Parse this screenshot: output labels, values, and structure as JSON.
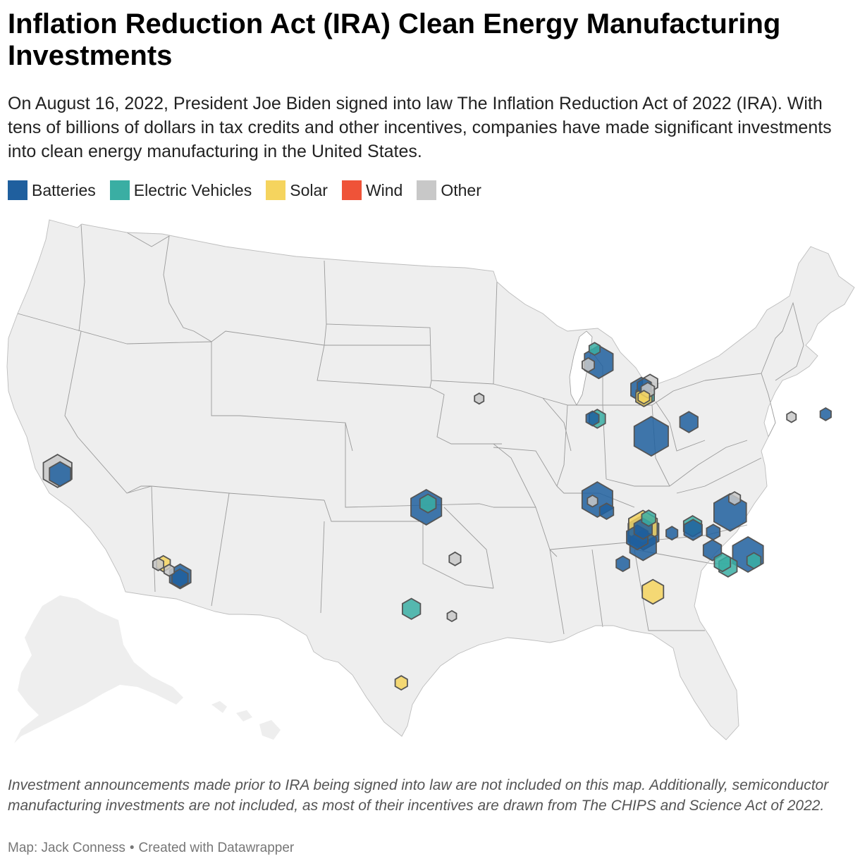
{
  "title": "Inflation Reduction Act (IRA) Clean Energy Manufacturing Investments",
  "subtitle": "On August 16, 2022, President Joe Biden signed into law The Inflation Reduction Act of 2022 (IRA). With tens of billions of dollars in tax credits and other incentives, companies have made significant investments into clean energy manufacturing in the United States.",
  "legend": [
    {
      "label": "Batteries",
      "color": "#1f5f9e"
    },
    {
      "label": "Electric Vehicles",
      "color": "#3aaea3"
    },
    {
      "label": "Solar",
      "color": "#f5d45e"
    },
    {
      "label": "Wind",
      "color": "#ef5338"
    },
    {
      "label": "Other",
      "color": "#c8c8c8"
    }
  ],
  "colors": {
    "land": "#eeeeee",
    "border": "#9a9a9a",
    "hex_stroke": "#555555",
    "water": "#ffffff"
  },
  "footer": {
    "note": "Investment announcements made prior to IRA being signed into law are not included on this map. Additionally, semiconductor manufacturing investments are not included, as most of their incentives are drawn from The CHIPS and Science Act of 2022.",
    "credit_map": "Map: Jack Conness",
    "credit_tool": "Created with Datawrapper"
  },
  "map_data": {
    "type": "hexbin-symbol-map",
    "region": "United States",
    "points": [
      {
        "lon": -119.8,
        "lat": 39.5,
        "category": "Other",
        "size": 6
      },
      {
        "lon": -119.6,
        "lat": 39.3,
        "category": "Batteries",
        "size": 3
      },
      {
        "lon": -112.3,
        "lat": 33.5,
        "category": "Solar",
        "size": 1
      },
      {
        "lon": -112.6,
        "lat": 33.5,
        "category": "Other",
        "size": 0.5
      },
      {
        "lon": -111.9,
        "lat": 33.1,
        "category": "Other",
        "size": 0.4
      },
      {
        "lon": -111.2,
        "lat": 32.7,
        "category": "Batteries",
        "size": 3
      },
      {
        "lon": -111.2,
        "lat": 32.6,
        "category": "Batteries",
        "size": 1.5
      },
      {
        "lon": -96.9,
        "lat": 35.7,
        "category": "Batteries",
        "size": 7
      },
      {
        "lon": -96.8,
        "lat": 35.9,
        "category": "Electric Vehicles",
        "size": 1.5
      },
      {
        "lon": -95.2,
        "lat": 32.9,
        "category": "Other",
        "size": 0.6
      },
      {
        "lon": -97.7,
        "lat": 30.2,
        "category": "Electric Vehicles",
        "size": 2
      },
      {
        "lon": -95.4,
        "lat": 29.8,
        "category": "Other",
        "size": 0.3
      },
      {
        "lon": -98.2,
        "lat": 26.2,
        "category": "Solar",
        "size": 0.7
      },
      {
        "lon": -93.6,
        "lat": 41.6,
        "category": "Other",
        "size": 0.3
      },
      {
        "lon": -85.8,
        "lat": 43.9,
        "category": "Batteries",
        "size": 6
      },
      {
        "lon": -86.0,
        "lat": 44.6,
        "category": "Electric Vehicles",
        "size": 0.5
      },
      {
        "lon": -86.5,
        "lat": 43.7,
        "category": "Other",
        "size": 0.7
      },
      {
        "lon": -83.2,
        "lat": 42.6,
        "category": "Batteries",
        "size": 3
      },
      {
        "lon": -83.0,
        "lat": 42.8,
        "category": "Batteries",
        "size": 1
      },
      {
        "lon": -82.6,
        "lat": 43.0,
        "category": "Other",
        "size": 1.3
      },
      {
        "lon": -82.8,
        "lat": 42.6,
        "category": "Other",
        "size": 0.9
      },
      {
        "lon": -83.0,
        "lat": 42.3,
        "category": "Electric Vehicles",
        "size": 2
      },
      {
        "lon": -83.1,
        "lat": 42.2,
        "category": "Solar",
        "size": 1.5
      },
      {
        "lon": -83.1,
        "lat": 42.2,
        "category": "Solar",
        "size": 0.6
      },
      {
        "lon": -86.2,
        "lat": 40.8,
        "category": "Electric Vehicles",
        "size": 1.5
      },
      {
        "lon": -86.5,
        "lat": 40.8,
        "category": "Batteries",
        "size": 0.8
      },
      {
        "lon": -82.9,
        "lat": 40.1,
        "category": "Batteries",
        "size": 9
      },
      {
        "lon": -80.4,
        "lat": 41.1,
        "category": "Batteries",
        "size": 2
      },
      {
        "lon": -86.6,
        "lat": 36.4,
        "category": "Batteries",
        "size": 7
      },
      {
        "lon": -86.9,
        "lat": 36.3,
        "category": "Other",
        "size": 0.4
      },
      {
        "lon": -86.1,
        "lat": 35.8,
        "category": "Batteries",
        "size": 1
      },
      {
        "lon": -78.6,
        "lat": 36.4,
        "category": "Batteries",
        "size": 8
      },
      {
        "lon": -78.2,
        "lat": 37.2,
        "category": "Other",
        "size": 0.6
      },
      {
        "lon": -84.0,
        "lat": 35.1,
        "category": "Solar",
        "size": 6
      },
      {
        "lon": -84.0,
        "lat": 34.8,
        "category": "Batteries",
        "size": 7
      },
      {
        "lon": -84.0,
        "lat": 35.0,
        "category": "Batteries",
        "size": 2
      },
      {
        "lon": -83.6,
        "lat": 35.6,
        "category": "Electric Vehicles",
        "size": 1
      },
      {
        "lon": -84.1,
        "lat": 34.1,
        "category": "Batteries",
        "size": 5
      },
      {
        "lon": -84.4,
        "lat": 34.5,
        "category": "Batteries",
        "size": 3
      },
      {
        "lon": -82.3,
        "lat": 34.9,
        "category": "Batteries",
        "size": 0.6
      },
      {
        "lon": -81.0,
        "lat": 35.4,
        "category": "Electric Vehicles",
        "size": 2
      },
      {
        "lon": -81.0,
        "lat": 35.2,
        "category": "Batteries",
        "size": 2
      },
      {
        "lon": -79.8,
        "lat": 35.2,
        "category": "Batteries",
        "size": 0.9
      },
      {
        "lon": -80.0,
        "lat": 34.2,
        "category": "Batteries",
        "size": 2
      },
      {
        "lon": -77.9,
        "lat": 34.2,
        "category": "Batteries",
        "size": 7
      },
      {
        "lon": -77.6,
        "lat": 33.9,
        "category": "Electric Vehicles",
        "size": 1
      },
      {
        "lon": -79.2,
        "lat": 33.4,
        "category": "Electric Vehicles",
        "size": 2
      },
      {
        "lon": -79.5,
        "lat": 33.6,
        "category": "Electric Vehicles",
        "size": 1.5
      },
      {
        "lon": -85.4,
        "lat": 33.0,
        "category": "Batteries",
        "size": 0.9
      },
      {
        "lon": -83.8,
        "lat": 31.6,
        "category": "Solar",
        "size": 3
      },
      {
        "lon": -71.4,
        "lat": 42.7,
        "category": "Batteries",
        "size": 0.5
      },
      {
        "lon": -73.7,
        "lat": 42.2,
        "category": "Other",
        "size": 0.3
      }
    ]
  }
}
